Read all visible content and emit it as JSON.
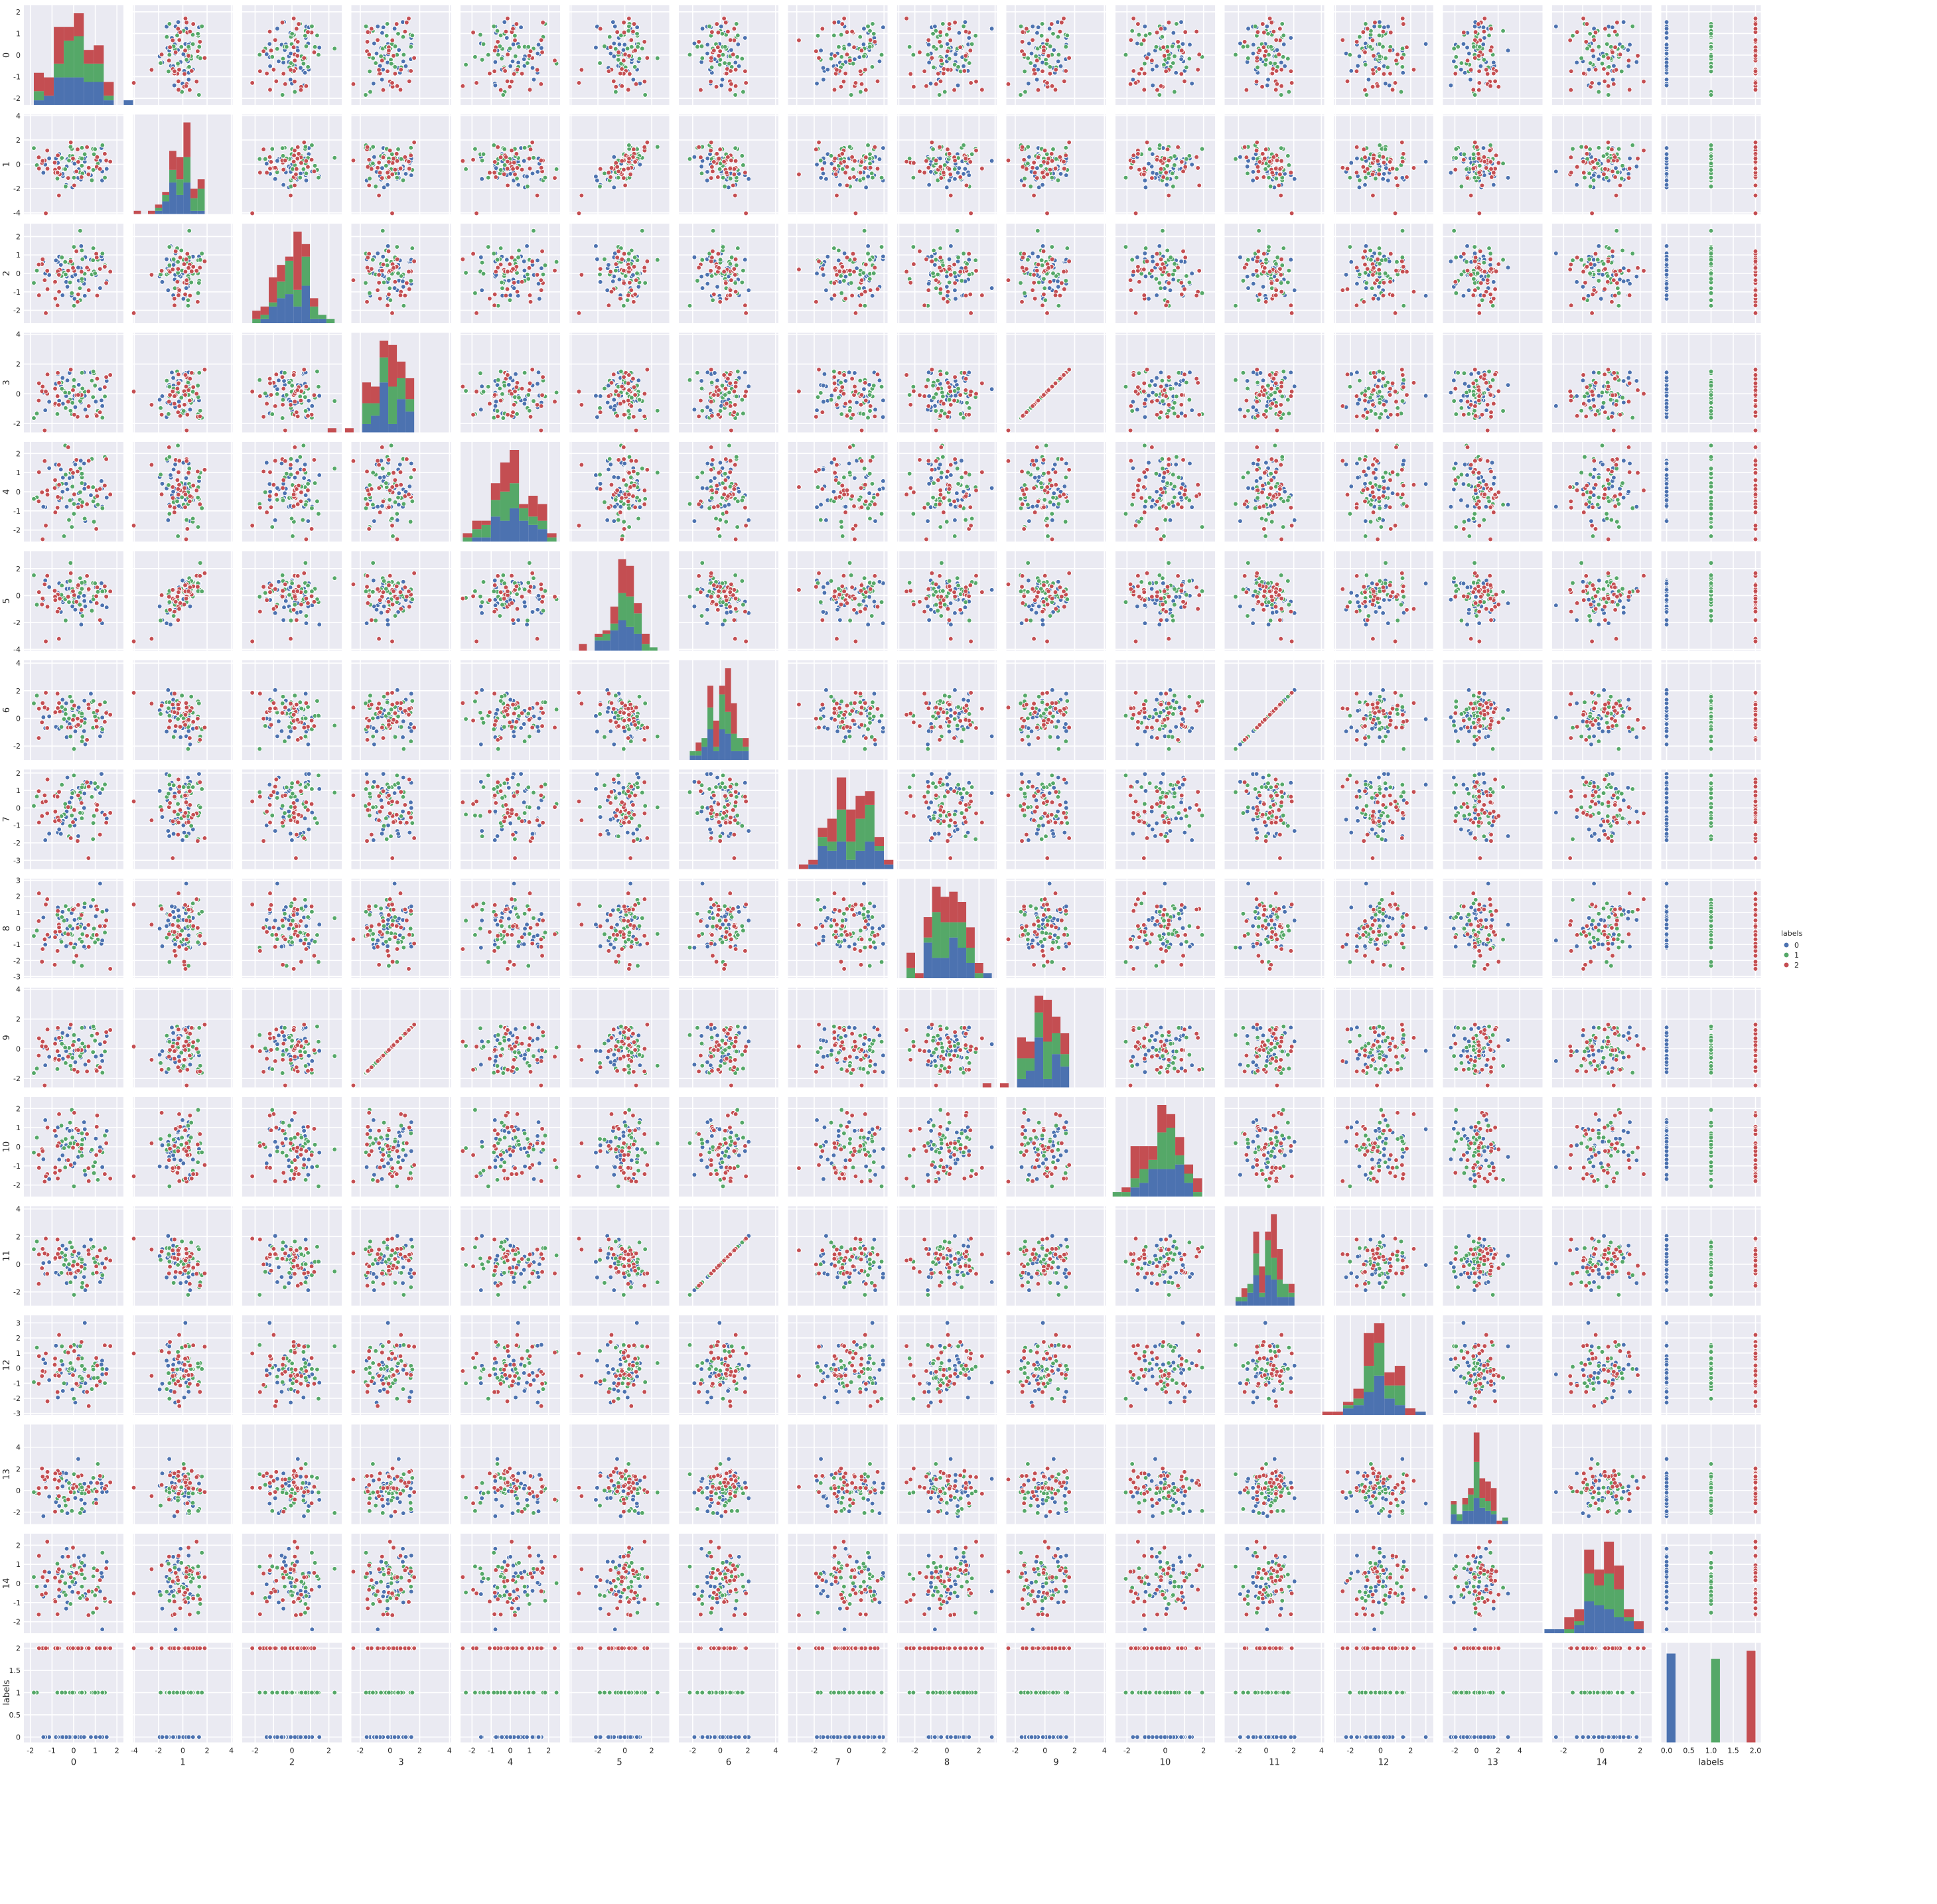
{
  "chart_data": {
    "type": "scatter",
    "subtype": "pairplot",
    "variables": [
      "0",
      "1",
      "2",
      "3",
      "4",
      "5",
      "6",
      "7",
      "8",
      "9",
      "10",
      "11",
      "12",
      "13",
      "14",
      "labels"
    ],
    "diagonal": "stacked-histogram",
    "off_diagonal": "scatter",
    "hue": "labels",
    "legend": {
      "title": "labels",
      "placement": "right-center",
      "entries": [
        {
          "label": "0",
          "color": "#4c72b0"
        },
        {
          "label": "1",
          "color": "#55a868"
        },
        {
          "label": "2",
          "color": "#c44e52"
        }
      ]
    },
    "grid": true,
    "ranges": {
      "0": [
        -2.3,
        2.3
      ],
      "1": [
        -4.1,
        4.1
      ],
      "2": [
        -2.7,
        2.7
      ],
      "3": [
        -2.6,
        4.1
      ],
      "4": [
        -2.6,
        2.6
      ],
      "5": [
        -4.1,
        3.3
      ],
      "6": [
        -3.0,
        4.2
      ],
      "7": [
        -3.5,
        2.2
      ],
      "8": [
        -3.1,
        3.1
      ],
      "9": [
        -2.6,
        4.1
      ],
      "10": [
        -2.6,
        2.6
      ],
      "11": [
        -3.0,
        4.2
      ],
      "12": [
        -3.1,
        3.5
      ],
      "13": [
        -3.1,
        6.1
      ],
      "14": [
        -2.6,
        2.6
      ],
      "labels": [
        -0.12,
        2.12
      ]
    },
    "ticks": {
      "0": [
        -2,
        -1,
        0,
        1,
        2
      ],
      "1": [
        -4,
        -2,
        0,
        2,
        4
      ],
      "2": [
        -2,
        -1,
        0,
        1,
        2
      ],
      "3": [
        -2,
        0,
        2,
        4
      ],
      "4": [
        -2,
        -1,
        0,
        1,
        2
      ],
      "5": [
        -4,
        -2,
        0,
        2
      ],
      "6": [
        -2,
        0,
        2,
        4
      ],
      "7": [
        -3,
        -2,
        -1,
        0,
        1,
        2
      ],
      "8": [
        -3,
        -2,
        -1,
        0,
        1,
        2,
        3
      ],
      "9": [
        -2,
        0,
        2,
        4
      ],
      "10": [
        -2,
        -1,
        0,
        1,
        2
      ],
      "11": [
        -2,
        0,
        2,
        4
      ],
      "12": [
        -3,
        -2,
        -1,
        0,
        1,
        2,
        3
      ],
      "13": [
        -2,
        0,
        2,
        4
      ],
      "14": [
        -2,
        -1,
        0,
        1,
        2
      ],
      "labels": [
        0.0,
        0.5,
        1.0,
        1.5,
        2.0
      ]
    },
    "x_tick_labels": {
      "0": [
        "-2",
        "-1",
        "0",
        "1",
        "2"
      ],
      "1": [
        "-4",
        "-2",
        "0",
        "2",
        "4"
      ],
      "2": [
        "-2",
        "0",
        "2"
      ],
      "3": [
        "-2",
        "0",
        "2",
        "4"
      ],
      "4": [
        "-2",
        "-1",
        "0",
        "1",
        "2"
      ],
      "5": [
        "-2",
        "0",
        "2"
      ],
      "6": [
        "-2",
        "0",
        "2",
        "4"
      ],
      "7": [
        "-2",
        "0",
        "2"
      ],
      "8": [
        "-2",
        "0",
        "2"
      ],
      "9": [
        "-2",
        "0",
        "2",
        "4"
      ],
      "10": [
        "-2",
        "0",
        "2"
      ],
      "11": [
        "-2",
        "0",
        "2",
        "4"
      ],
      "12": [
        "-2",
        "0",
        "2"
      ],
      "13": [
        "-2",
        "0",
        "2",
        "4"
      ],
      "14": [
        "-2",
        "0",
        "2"
      ],
      "labels": [
        "0.0",
        "0.5",
        "1.0",
        "1.5",
        "2.0"
      ]
    },
    "approximate_relationships": [
      {
        "x": "3",
        "y": "9",
        "relation": "identical (y = x)"
      },
      {
        "x": "6",
        "y": "11",
        "relation": "identical (y = x)"
      },
      {
        "x": "1",
        "y": "5",
        "relation": "positive correlation"
      },
      {
        "x": "1",
        "y": "6",
        "relation": "negative correlation"
      },
      {
        "x": "1",
        "y": "11",
        "relation": "negative correlation"
      }
    ],
    "label_counts": {
      "0": 33,
      "1": 31,
      "2": 34
    }
  }
}
